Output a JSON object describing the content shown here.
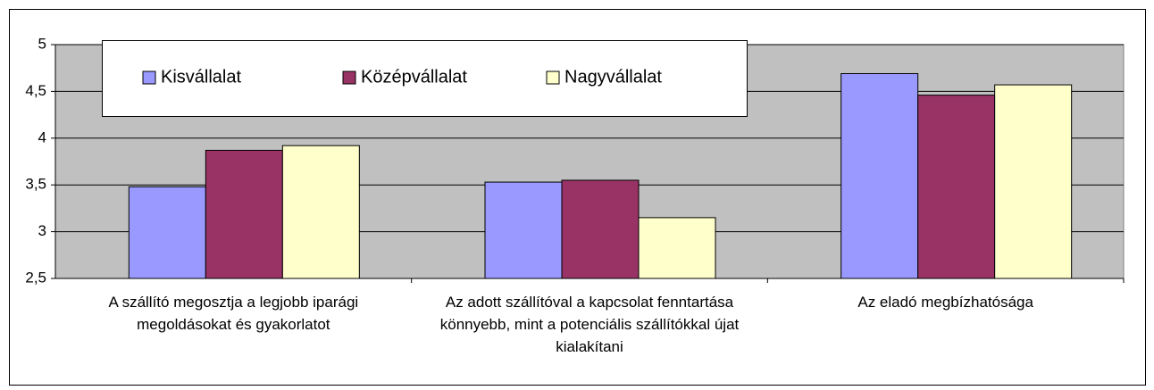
{
  "chart_data": {
    "type": "bar",
    "categories": [
      "A szállító megosztja a legjobb iparági megoldásokat és gyakorlatot",
      "Az adott szállítóval a kapcsolat fenntartása könnyebb, mint a potenciális szállítókkal újat kialakítani",
      "Az eladó megbízhatósága"
    ],
    "series": [
      {
        "name": "Kisvállalat",
        "color": "#9999ff",
        "values": [
          3.48,
          3.53,
          4.69
        ]
      },
      {
        "name": "Középvállalat",
        "color": "#993366",
        "values": [
          3.87,
          3.55,
          4.46
        ]
      },
      {
        "name": "Nagyvállalat",
        "color": "#ffffcc",
        "values": [
          3.92,
          3.15,
          4.57
        ]
      }
    ],
    "ylim": [
      2.5,
      5
    ],
    "yticks": [
      {
        "value": 2.5,
        "label": "2,5"
      },
      3,
      {
        "value": 3.5,
        "label": "3,5"
      },
      4,
      {
        "value": 4.5,
        "label": "4,5"
      },
      5
    ],
    "grid": true,
    "legend": "top"
  }
}
